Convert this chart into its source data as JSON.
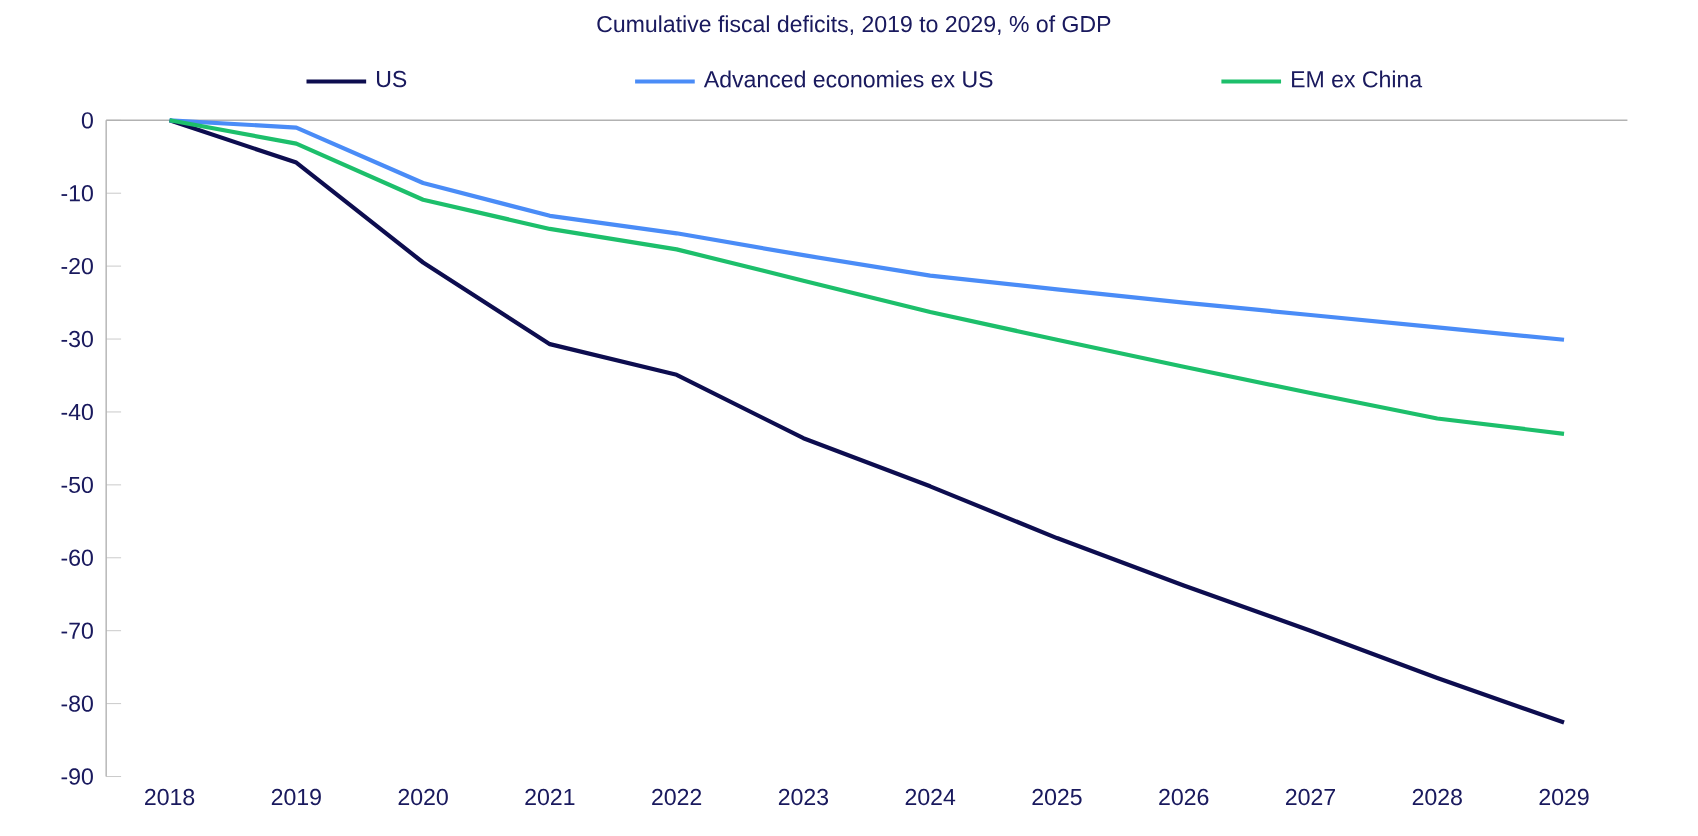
{
  "chart_data": {
    "type": "line",
    "title": "Cumulative fiscal deficits, 2019 to 2029, % of GDP",
    "categories": [
      "2018",
      "2019",
      "2020",
      "2021",
      "2022",
      "2023",
      "2024",
      "2025",
      "2026",
      "2027",
      "2028",
      "2029"
    ],
    "series": [
      {
        "name": "US",
        "color": "#0d0d4f",
        "values": [
          0,
          -5.8,
          -19.5,
          -30.7,
          -34.9,
          -43.6,
          -50.2,
          -57.3,
          -63.8,
          -70.0,
          -76.5,
          -82.6
        ]
      },
      {
        "name": "Advanced economies ex US",
        "color": "#4a8cf7",
        "values": [
          0,
          -1.0,
          -8.6,
          -13.1,
          -15.5,
          -18.5,
          -21.3,
          -23.2,
          -25.0,
          -26.7,
          -28.4,
          -30.1
        ]
      },
      {
        "name": "EM ex China",
        "color": "#1dbf6b",
        "values": [
          0,
          -3.2,
          -10.9,
          -14.9,
          -17.7,
          -22.0,
          -26.3,
          -30.1,
          -33.8,
          -37.4,
          -40.9,
          -43.0
        ]
      }
    ],
    "ylim": [
      -90,
      0
    ],
    "yticks": [
      0,
      -10,
      -20,
      -30,
      -40,
      -50,
      -60,
      -70,
      -80,
      -90
    ],
    "legend": "top",
    "grid": false,
    "marker": "none",
    "line_style": "solid"
  }
}
